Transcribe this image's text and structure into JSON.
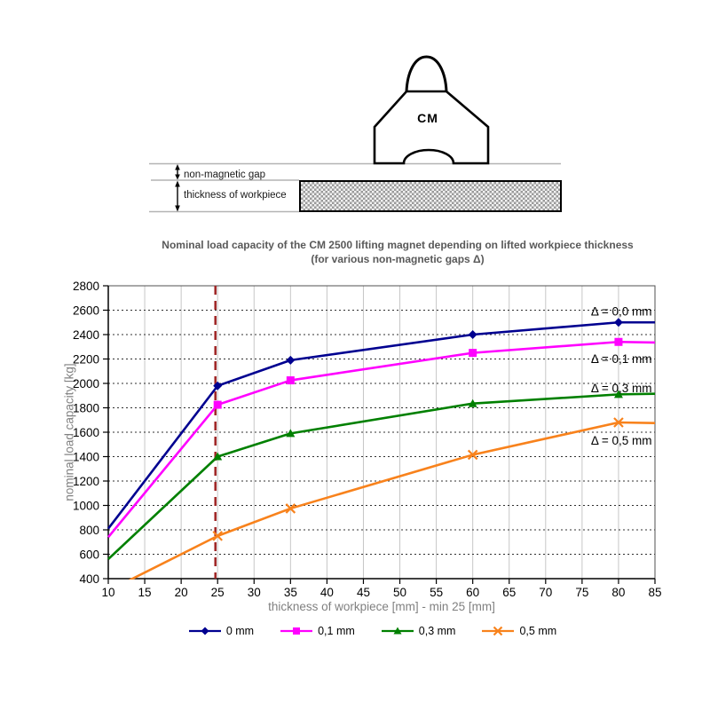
{
  "diagram": {
    "magnet_label": "CM",
    "gap_label": "non-magnetic gap",
    "thickness_label": "thickness of workpiece"
  },
  "chart": {
    "title_line1": "Nominal load capacity of the CM 2500 lifting magnet depending on lifted workpiece thickness",
    "title_line2": "(for various non-magnetic gaps Δ)",
    "title_color": "#595959",
    "axis_label_color": "#808080"
  },
  "chart_data": {
    "type": "line",
    "title": "Nominal load capacity of the CM 2500 lifting magnet depending on lifted workpiece thickness (for various non-magnetic gaps Δ)",
    "xlabel": "thickness of workpiece [mm] - min 25 [mm]",
    "ylabel": "nominal load capacity [kg]",
    "xlim": [
      10,
      85
    ],
    "ylim": [
      400,
      2800
    ],
    "xticks": [
      10,
      15,
      20,
      25,
      30,
      35,
      40,
      45,
      50,
      55,
      60,
      65,
      70,
      75,
      80,
      85
    ],
    "yticks": [
      400,
      600,
      800,
      1000,
      1200,
      1400,
      1600,
      1800,
      2000,
      2200,
      2400,
      2600,
      2800
    ],
    "grid": true,
    "legend_position": "bottom",
    "x": [
      10,
      25,
      35,
      60,
      80,
      85
    ],
    "marker_x": [
      25,
      35,
      60,
      80
    ],
    "series": [
      {
        "name": "0 mm",
        "color": "#000090",
        "marker": "diamond",
        "values": [
          810,
          1980,
          2190,
          2400,
          2500,
          2500
        ]
      },
      {
        "name": "0,1 mm",
        "color": "#FF00FF",
        "marker": "square",
        "values": [
          740,
          1825,
          2025,
          2250,
          2340,
          2335
        ]
      },
      {
        "name": "0,3 mm",
        "color": "#008000",
        "marker": "triangle",
        "values": [
          560,
          1400,
          1590,
          1835,
          1910,
          1915
        ]
      },
      {
        "name": "0,5 mm",
        "color": "#F8821C",
        "marker": "x",
        "values": [
          300,
          750,
          975,
          1415,
          1680,
          1675
        ]
      }
    ],
    "vline": {
      "x": 24.7,
      "color": "#A02828",
      "style": "dashed"
    },
    "annotations": [
      {
        "text": "Δ = 0,0 mm",
        "x": 80.4,
        "y": 2590
      },
      {
        "text": "Δ = 0,1 mm",
        "x": 80.4,
        "y": 2200
      },
      {
        "text": "Δ = 0,3 mm",
        "x": 80.4,
        "y": 1960
      },
      {
        "text": "Δ = 0,5 mm",
        "x": 80.4,
        "y": 1530
      }
    ]
  }
}
